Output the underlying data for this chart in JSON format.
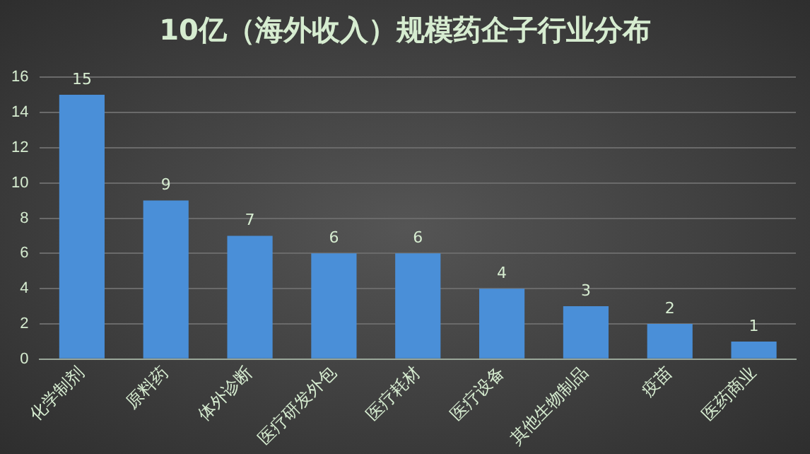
{
  "chart_data": {
    "type": "bar",
    "title": "10亿（海外收入）规模药企子行业分布",
    "categories": [
      "化学制剂",
      "原料药",
      "体外诊断",
      "医疗研发外包",
      "医疗耗材",
      "医疗设备",
      "其他生物制品",
      "疫苗",
      "医药商业"
    ],
    "values": [
      15,
      9,
      7,
      6,
      6,
      4,
      3,
      2,
      1
    ],
    "color": "#4a8fd8",
    "ylim": [
      0,
      16
    ],
    "yticks": [
      0,
      2,
      4,
      6,
      8,
      10,
      12,
      14,
      16
    ],
    "grid": "y",
    "data_labels": true
  }
}
